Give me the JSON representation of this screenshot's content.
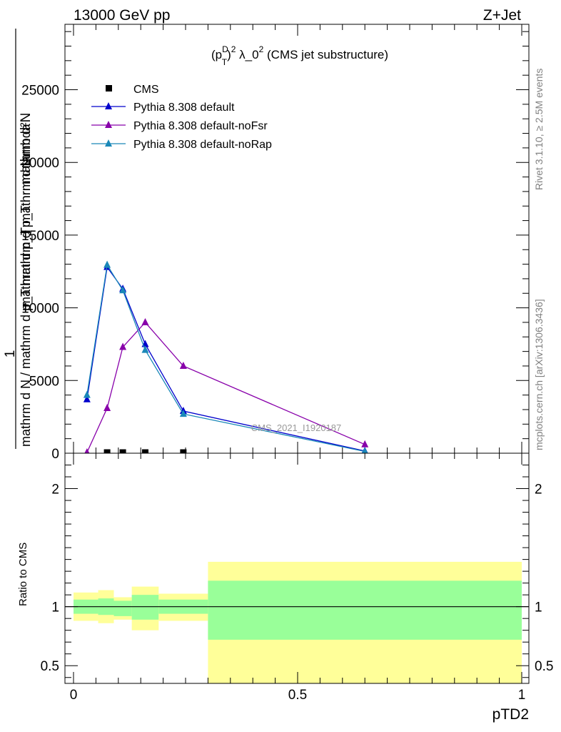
{
  "header": {
    "left": "13000 GeV pp",
    "right": "Z+Jet"
  },
  "plot_title": {
    "prefix": "(p",
    "sup1": "D",
    "sub1": "T",
    "after_pt": ")",
    "sup2": "2",
    "mid": " λ_0",
    "sup3": "2",
    "suffix": " (CMS jet substructure)"
  },
  "side_labels": {
    "rivet": "Rivet 3.1.10, ≥ 2.5M events",
    "mcplots": "mcplots.cern.ch [arXiv:1306.3436]"
  },
  "watermark": "CMS_2021_I1920187",
  "ylabel_main": {
    "numerator": "mathrm d²N",
    "numerator_line2": "mathrm d p_T mathrm d lambda",
    "denominator_prefix": "1",
    "denominator": "mathrm d N / mathrm d p_T mathrm d p_T"
  },
  "ylabel_ratio": "Ratio to CMS",
  "xlabel": "pTD2",
  "colors": {
    "cms": "#000000",
    "default": "#0000cc",
    "noFsr": "#8800aa",
    "noRap": "#1a88b8",
    "band_inner": "#99ff99",
    "band_outer": "#ffff99"
  },
  "chart_data": [
    {
      "type": "line",
      "panel": "main",
      "xlim": [
        -0.02,
        1.0
      ],
      "ylim": [
        0,
        29500
      ],
      "y_ticks": [
        0,
        5000,
        10000,
        15000,
        20000,
        25000
      ],
      "y_tick_labels": [
        "0",
        "5000",
        "10000",
        "15000",
        "20000",
        "25000"
      ],
      "grid": false,
      "legend_position": "top-left",
      "series": [
        {
          "name": "CMS",
          "marker": "square",
          "x": [
            0.075,
            0.11,
            0.16,
            0.245
          ],
          "y": [
            0,
            0,
            0,
            0
          ]
        },
        {
          "name": "Pythia 8.308 default",
          "marker": "triangle",
          "x": [
            0.03,
            0.075,
            0.11,
            0.16,
            0.245,
            0.65
          ],
          "y": [
            3700,
            12800,
            11300,
            7500,
            2900,
            150
          ]
        },
        {
          "name": "Pythia 8.308 default-noFsr",
          "marker": "triangle",
          "x": [
            0.03,
            0.075,
            0.11,
            0.16,
            0.245,
            0.65
          ],
          "y": [
            50,
            3100,
            7300,
            9000,
            6000,
            600
          ]
        },
        {
          "name": "Pythia 8.308 default-noRap",
          "marker": "triangle",
          "x": [
            0.03,
            0.075,
            0.11,
            0.16,
            0.245,
            0.65
          ],
          "y": [
            4000,
            12950,
            11200,
            7100,
            2700,
            120
          ]
        }
      ]
    },
    {
      "type": "area",
      "panel": "ratio",
      "xlim": [
        -0.02,
        1.0
      ],
      "ylim": [
        0.35,
        2.3
      ],
      "x_ticks": [
        0,
        0.5,
        1
      ],
      "x_tick_labels": [
        "0",
        "0.5",
        "1"
      ],
      "y_ticks": [
        0.5,
        1,
        2
      ],
      "y_tick_labels": [
        "0.5",
        "1",
        "2"
      ],
      "reference_line": 1,
      "bands": [
        {
          "x_low": 0.0,
          "x_high": 0.055,
          "inner": [
            0.94,
            1.06
          ],
          "outer": [
            0.88,
            1.12
          ]
        },
        {
          "x_low": 0.055,
          "x_high": 0.09,
          "inner": [
            0.93,
            1.07
          ],
          "outer": [
            0.86,
            1.14
          ]
        },
        {
          "x_low": 0.09,
          "x_high": 0.13,
          "inner": [
            0.92,
            1.05
          ],
          "outer": [
            0.89,
            1.08
          ]
        },
        {
          "x_low": 0.13,
          "x_high": 0.19,
          "inner": [
            0.89,
            1.1
          ],
          "outer": [
            0.8,
            1.17
          ]
        },
        {
          "x_low": 0.19,
          "x_high": 0.3,
          "inner": [
            0.94,
            1.06
          ],
          "outer": [
            0.88,
            1.11
          ]
        },
        {
          "x_low": 0.3,
          "x_high": 1.0,
          "inner": [
            0.72,
            1.22
          ],
          "outer": [
            0.35,
            1.38
          ]
        }
      ]
    }
  ]
}
